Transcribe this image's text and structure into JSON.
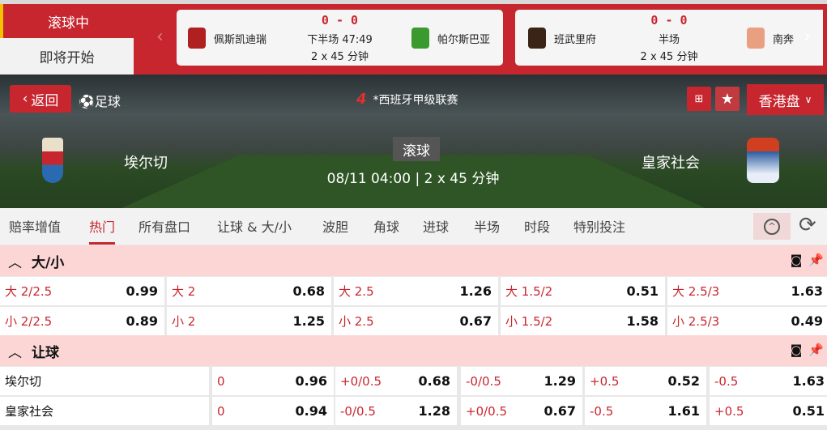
{
  "top": {
    "live_tab": "滚球中",
    "soon_tab": "即将开始",
    "cards": [
      {
        "home": "佩斯凯迪瑞",
        "away": "帕尔斯巴亚",
        "score": "0 - 0",
        "status": "下半场 47:49",
        "duration": "2 x 45 分钟"
      },
      {
        "home": "班武里府",
        "away": "南奔",
        "score": "0 - 0",
        "status": "半场",
        "duration": "2 x 45 分钟"
      }
    ]
  },
  "hero": {
    "back": "返回",
    "sport": "足球",
    "league": "*西班牙甲级联赛",
    "odds_type": "香港盘",
    "home": "埃尔切",
    "away": "皇家社会",
    "status": "滚球",
    "kickoff": "08/11 04:00",
    "duration": "2 x 45 分钟"
  },
  "tabs": [
    "赔率增值",
    "热门",
    "所有盘口",
    "让球 & 大/小",
    "波胆",
    "角球",
    "进球",
    "半场",
    "时段",
    "特别投注"
  ],
  "active_tab": "热门",
  "ou": {
    "title": "大/小",
    "rows": [
      [
        [
          "大 2/2.5",
          "0.99"
        ],
        [
          "大 2",
          "0.68"
        ],
        [
          "大 2.5",
          "1.26"
        ],
        [
          "大 1.5/2",
          "0.51"
        ],
        [
          "大 2.5/3",
          "1.63"
        ]
      ],
      [
        [
          "小 2/2.5",
          "0.89"
        ],
        [
          "小 2",
          "1.25"
        ],
        [
          "小 2.5",
          "0.67"
        ],
        [
          "小 1.5/2",
          "1.58"
        ],
        [
          "小 2.5/3",
          "0.49"
        ]
      ]
    ]
  },
  "hdp": {
    "title": "让球",
    "rows": [
      {
        "team": "埃尔切",
        "cells": [
          [
            "0",
            "0.96"
          ],
          [
            "+0/0.5",
            "0.68"
          ],
          [
            "-0/0.5",
            "1.29"
          ],
          [
            "+0.5",
            "0.52"
          ],
          [
            "-0.5",
            "1.63"
          ]
        ]
      },
      {
        "team": "皇家社会",
        "cells": [
          [
            "0",
            "0.94"
          ],
          [
            "-0/0.5",
            "1.28"
          ],
          [
            "+0/0.5",
            "0.67"
          ],
          [
            "-0.5",
            "1.61"
          ],
          [
            "+0.5",
            "0.51"
          ]
        ]
      }
    ]
  },
  "colors": {
    "brand": "#c8262f",
    "section": "#fcd5d5"
  }
}
